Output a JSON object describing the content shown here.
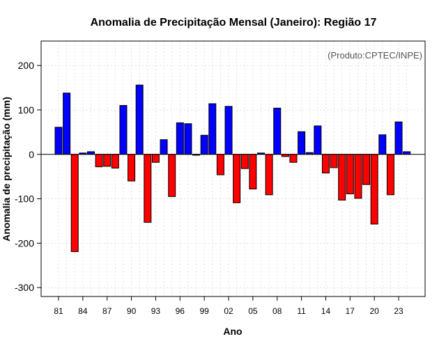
{
  "chart_data": {
    "type": "bar",
    "title": "Anomalia de Precipitação Mensal (Janeiro): Região 17",
    "xlabel": "Ano",
    "ylabel": "Anomalia de precipitação (mm)",
    "annotation": "(Produto:CPTEC/INPE)",
    "ylim": [
      -320,
      255
    ],
    "yticks": [
      -300,
      -200,
      -100,
      0,
      100,
      200
    ],
    "grid": true,
    "positive_color": "#0000ff",
    "negative_color": "#ff0000",
    "xtick_labels": [
      "81",
      "84",
      "87",
      "90",
      "93",
      "96",
      "99",
      "02",
      "05",
      "08",
      "11",
      "14",
      "17",
      "20",
      "23"
    ],
    "categories": [
      "1981",
      "1982",
      "1983",
      "1984",
      "1985",
      "1986",
      "1987",
      "1988",
      "1989",
      "1990",
      "1991",
      "1992",
      "1993",
      "1994",
      "1995",
      "1996",
      "1997",
      "1998",
      "1999",
      "2000",
      "2001",
      "2002",
      "2003",
      "2004",
      "2005",
      "2006",
      "2007",
      "2008",
      "2009",
      "2010",
      "2011",
      "2012",
      "2013",
      "2014",
      "2015",
      "2016",
      "2017",
      "2018",
      "2019",
      "2020",
      "2021",
      "2022",
      "2023",
      "2024"
    ],
    "values": [
      61,
      138,
      -219,
      3,
      6,
      -28,
      -27,
      -31,
      110,
      -60,
      156,
      -153,
      -18,
      33,
      -95,
      71,
      69,
      -2,
      43,
      114,
      -46,
      108,
      -109,
      -32,
      -78,
      3,
      -91,
      104,
      -5,
      -18,
      51,
      4,
      64,
      -42,
      -30,
      -103,
      -89,
      -99,
      -68,
      -157,
      44,
      -91,
      73,
      6
    ]
  }
}
